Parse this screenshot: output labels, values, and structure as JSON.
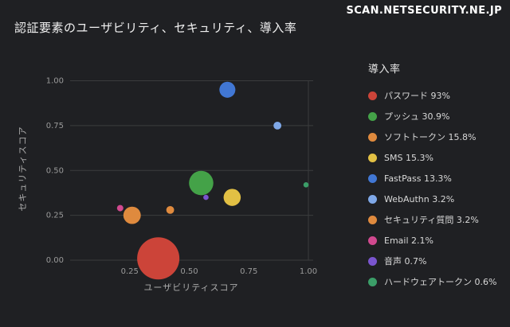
{
  "header": {
    "site": "SCAN.NETSECURITY.NE.JP"
  },
  "chart_data": {
    "type": "scatter",
    "title": "認証要素のユーザビリティ、セキュリティ、導入率",
    "xlabel": "ユーザビリティスコア",
    "ylabel": "セキュリティスコア",
    "legend_title": "導入率",
    "legend_position": "right",
    "grid": "horizontal",
    "xlim": [
      0,
      1.02
    ],
    "ylim": [
      0,
      1.02
    ],
    "xticks": [
      0.25,
      0.5,
      0.75,
      1.0
    ],
    "yticks": [
      0.0,
      0.25,
      0.5,
      0.75,
      1.0
    ],
    "size_encodes": "adoption_pct",
    "series": [
      {
        "name": "パスワード",
        "label": "パスワード 93%",
        "x": 0.37,
        "y": 0.01,
        "adoption_pct": 93,
        "color": "#cc4439"
      },
      {
        "name": "プッシュ",
        "label": "プッシュ 30.9%",
        "x": 0.55,
        "y": 0.43,
        "adoption_pct": 30.9,
        "color": "#44a248"
      },
      {
        "name": "ソフトトークン",
        "label": "ソフトトークン 15.8%",
        "x": 0.26,
        "y": 0.25,
        "adoption_pct": 15.8,
        "color": "#df8a3e"
      },
      {
        "name": "SMS",
        "label": "SMS 15.3%",
        "x": 0.68,
        "y": 0.35,
        "adoption_pct": 15.3,
        "color": "#e2c044"
      },
      {
        "name": "FastPass",
        "label": "FastPass 13.3%",
        "x": 0.66,
        "y": 0.95,
        "adoption_pct": 13.3,
        "color": "#4177d4"
      },
      {
        "name": "WebAuthn",
        "label": "WebAuthn 3.2%",
        "x": 0.87,
        "y": 0.75,
        "adoption_pct": 3.2,
        "color": "#7fa8e8"
      },
      {
        "name": "セキュリティ質問",
        "label": "セキュリティ質問 3.2%",
        "x": 0.42,
        "y": 0.28,
        "adoption_pct": 3.2,
        "color": "#df8a3e"
      },
      {
        "name": "Email",
        "label": "Email 2.1%",
        "x": 0.21,
        "y": 0.29,
        "adoption_pct": 2.1,
        "color": "#d1498f"
      },
      {
        "name": "音声",
        "label": "音声 0.7%",
        "x": 0.57,
        "y": 0.35,
        "adoption_pct": 0.7,
        "color": "#7a55cf"
      },
      {
        "name": "ハードウェアトークン",
        "label": "ハードウェアトークン 0.6%",
        "x": 0.99,
        "y": 0.42,
        "adoption_pct": 0.6,
        "color": "#3b9e68"
      }
    ]
  },
  "colors": {
    "background": "#1f2023",
    "grid": "#3b3c3e",
    "tick_text": "#9a9a9a",
    "axis_title_text": "#ababab",
    "title_text": "#f0f0f0",
    "legend_text": "#d8d8d8"
  }
}
